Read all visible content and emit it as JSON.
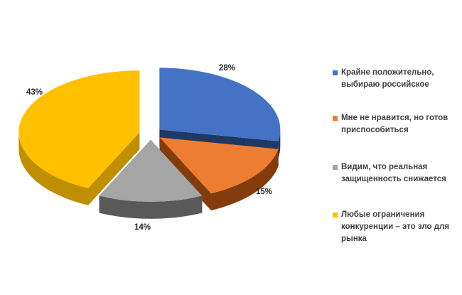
{
  "chart_data": {
    "type": "pie",
    "style": "3d-exploded",
    "categories": [
      "Крайне положительно, выбираю российское",
      "Мне не нравится, но готов приспособиться",
      "Видим, что реальная защищенность снижается",
      "Любые ограничения конкуренции – это зло для рынка"
    ],
    "values": [
      28,
      15,
      14,
      43
    ],
    "data_labels": [
      "28%",
      "15%",
      "14%",
      "43%"
    ],
    "colors": [
      "#4472C4",
      "#ED7D31",
      "#A5A5A5",
      "#FFC000"
    ],
    "side_colors": [
      "#1F3864",
      "#843C0C",
      "#595959",
      "#BF8F00"
    ],
    "legend_position": "right"
  }
}
